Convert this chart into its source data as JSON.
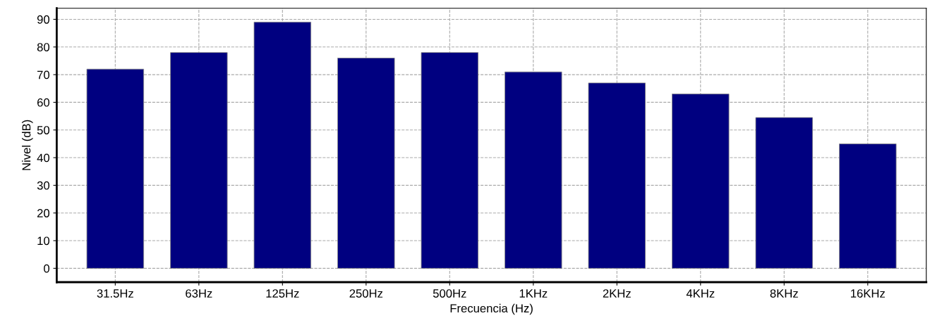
{
  "chart_data": {
    "type": "bar",
    "xlabel": "Frecuencia (Hz)",
    "ylabel": "Nivel (dB)",
    "categories": [
      "31.5Hz",
      "63Hz",
      "125Hz",
      "250Hz",
      "500Hz",
      "1KHz",
      "2KHz",
      "4KHz",
      "8KHz",
      "16KHz"
    ],
    "values": [
      72,
      78,
      89,
      76,
      78,
      71,
      67,
      63,
      54.5,
      45
    ],
    "color": "#000080",
    "ylim": [
      -5,
      94
    ],
    "yticks": [
      0,
      10,
      20,
      30,
      40,
      50,
      60,
      70,
      80,
      90
    ],
    "grid": true
  }
}
